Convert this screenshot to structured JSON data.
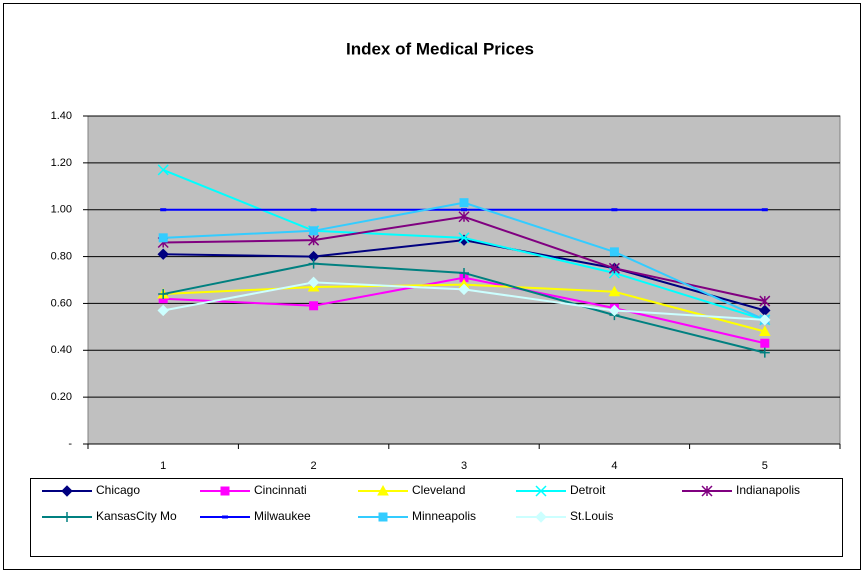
{
  "chart_data": {
    "type": "line",
    "title": "Index of Medical Prices",
    "categories": [
      1,
      2,
      3,
      4,
      5
    ],
    "ylim": [
      0,
      1.4
    ],
    "yticks": [
      {
        "value": 0,
        "label": "-"
      },
      {
        "value": 0.2,
        "label": "0.20"
      },
      {
        "value": 0.4,
        "label": "0.40"
      },
      {
        "value": 0.6,
        "label": "0.60"
      },
      {
        "value": 0.8,
        "label": "0.80"
      },
      {
        "value": 1.0,
        "label": "1.00"
      },
      {
        "value": 1.2,
        "label": "1.20"
      },
      {
        "value": 1.4,
        "label": "1.40"
      }
    ],
    "grid": true,
    "legend": "bottom",
    "series": [
      {
        "name": "Chicago",
        "color": "#000080",
        "marker": "diamond",
        "values": [
          0.81,
          0.8,
          0.87,
          0.75,
          0.57
        ]
      },
      {
        "name": "Cincinnati",
        "color": "#FF00FF",
        "marker": "square",
        "values": [
          0.62,
          0.59,
          0.71,
          0.58,
          0.43
        ]
      },
      {
        "name": "Cleveland",
        "color": "#FFFF00",
        "marker": "triangle",
        "values": [
          0.64,
          0.67,
          0.68,
          0.65,
          0.48
        ]
      },
      {
        "name": "Detroit",
        "color": "#00FFFF",
        "marker": "x",
        "values": [
          1.17,
          0.91,
          0.88,
          0.73,
          0.53
        ]
      },
      {
        "name": "Indianapolis",
        "color": "#800080",
        "marker": "star",
        "values": [
          0.86,
          0.87,
          0.97,
          0.75,
          0.61
        ]
      },
      {
        "name": "KansasCity Mo",
        "color": "#008080",
        "marker": "plus",
        "values": [
          0.64,
          0.77,
          0.73,
          0.55,
          0.39
        ]
      },
      {
        "name": "Milwaukee",
        "color": "#0000FF",
        "marker": "dash",
        "values": [
          1.0,
          1.0,
          1.0,
          1.0,
          1.0
        ]
      },
      {
        "name": "Minneapolis",
        "color": "#33CCFF",
        "marker": "square",
        "values": [
          0.88,
          0.91,
          1.03,
          0.82,
          0.53
        ]
      },
      {
        "name": "St.Louis",
        "color": "#CCFFFF",
        "marker": "diamond",
        "values": [
          0.57,
          0.69,
          0.66,
          0.57,
          0.53
        ]
      }
    ]
  }
}
